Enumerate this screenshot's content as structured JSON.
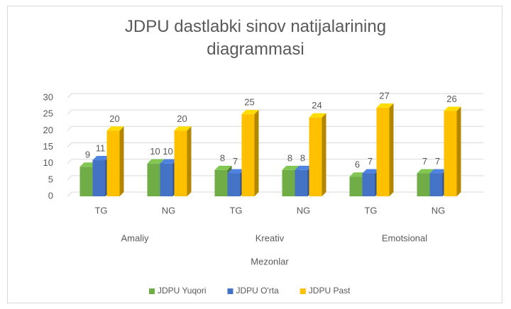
{
  "chart_data": {
    "type": "bar3d",
    "title": "JDPU dastlabki sinov natijalarining diagrammasi",
    "categories": [
      "TG",
      "NG",
      "TG",
      "NG",
      "TG",
      "NG"
    ],
    "groups": [
      "Amaliy",
      "Kreativ",
      "Emotsional"
    ],
    "x_label": "Mezonlar",
    "series": [
      {
        "name": "JDPU Yuqori",
        "color": "#70ad47",
        "values": [
          9,
          10,
          8,
          8,
          6,
          7
        ]
      },
      {
        "name": "JDPU O'rta",
        "color": "#4472c4",
        "values": [
          11,
          10,
          7,
          8,
          7,
          7
        ]
      },
      {
        "name": "JDPU Past",
        "color": "#ffc000",
        "values": [
          20,
          20,
          25,
          24,
          27,
          26
        ]
      }
    ],
    "ylim": [
      0,
      30
    ],
    "yticks": [
      0,
      5,
      10,
      15,
      20,
      25,
      30
    ],
    "grid": true,
    "legend": "bottom"
  }
}
